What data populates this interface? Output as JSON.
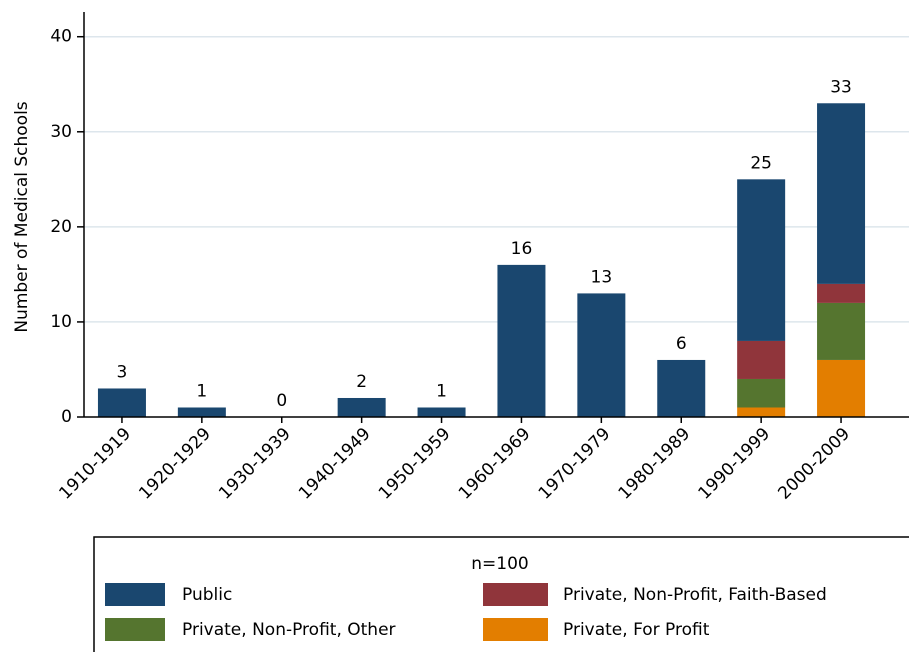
{
  "chart_data": {
    "type": "stacked_bar",
    "y_label": "Number of Medical Schools",
    "categories": [
      "1910-1919",
      "1920-1929",
      "1930-1939",
      "1940-1949",
      "1950-1959",
      "1960-1969",
      "1970-1979",
      "1980-1989",
      "1990-1999",
      "2000-2009"
    ],
    "series": [
      {
        "name": "Public",
        "color": "#1a476f",
        "values": [
          3,
          1,
          0,
          2,
          1,
          16,
          13,
          6,
          17,
          19
        ]
      },
      {
        "name": "Private, Non-Profit, Faith-Based",
        "color": "#90353b",
        "values": [
          0,
          0,
          0,
          0,
          0,
          0,
          0,
          0,
          4,
          2
        ]
      },
      {
        "name": "Private, Non-Profit, Other",
        "color": "#55752f",
        "values": [
          0,
          0,
          0,
          0,
          0,
          0,
          0,
          0,
          3,
          6
        ]
      },
      {
        "name": "Private, For Profit",
        "color": "#e37e00",
        "values": [
          0,
          0,
          0,
          0,
          0,
          0,
          0,
          0,
          1,
          6
        ]
      }
    ],
    "totals": [
      3,
      1,
      0,
      2,
      1,
      16,
      13,
      6,
      25,
      33
    ],
    "legend_title": "n=100",
    "ylim": [
      0,
      42.6
    ],
    "yticks": [
      0,
      10,
      20,
      30,
      40
    ],
    "grid": true,
    "legend": "bottom"
  }
}
